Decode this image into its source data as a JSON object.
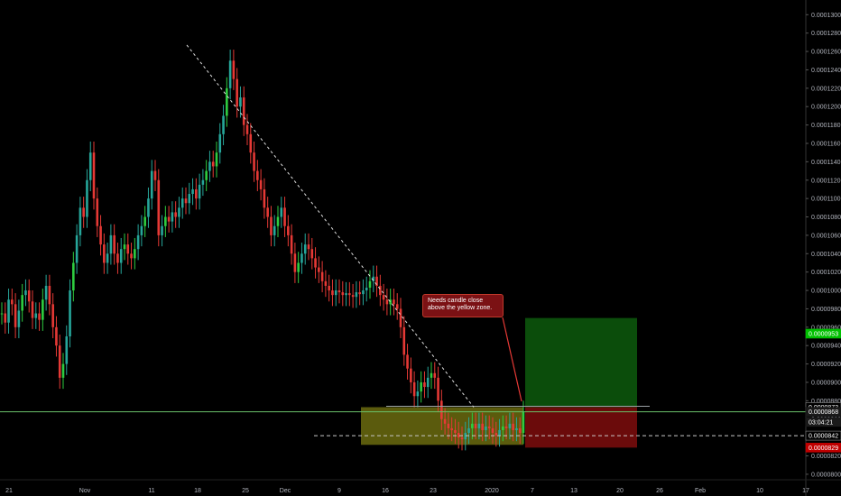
{
  "colors": {
    "background": "#000000",
    "up": "#26a69a",
    "up_bright": "#2ecc40",
    "down": "#e53935",
    "zone_yellow": "#6b6b0f",
    "target_green": "#0b4d0b",
    "stop_red": "#6b0b0b",
    "hline_green": "#6abf69"
  },
  "annotation": {
    "text": "Needs candle close above the yellow zone."
  },
  "chart_data": {
    "type": "candlestick",
    "x_ticks": [
      "21",
      "Nov",
      "11",
      "18",
      "25",
      "Dec",
      "9",
      "16",
      "23",
      "2020",
      "7",
      "13",
      "20",
      "26",
      "Feb",
      "10",
      "17"
    ],
    "y_ticks": [
      "0.0001300",
      "0.0001280",
      "0.0001260",
      "0.0001240",
      "0.0001220",
      "0.0001200",
      "0.0001180",
      "0.0001160",
      "0.0001140",
      "0.0001120",
      "0.0001100",
      "0.0001080",
      "0.0001060",
      "0.0001040",
      "0.0001020",
      "0.0001000",
      "0.0000980",
      "0.0000960",
      "0.0000940",
      "0.0000920",
      "0.0000900",
      "0.0000880",
      "0.0000860",
      "0.0000840",
      "0.0000820",
      "0.0000800"
    ],
    "ylim": [
      7.94e-05,
      0.0001316
    ],
    "price_tags": [
      {
        "label": "0.0000953",
        "value": 9.53e-05,
        "color": "#00c000"
      },
      {
        "label": "0.0000873",
        "value": 8.73e-05,
        "color": "#000000"
      },
      {
        "label": "0.0000868",
        "value": 8.68e-05,
        "color": "#1a1a1a"
      },
      {
        "label": "03:04:21",
        "value": 8.57e-05,
        "color": "#1a1a1a"
      },
      {
        "label": "0.0000842",
        "value": 8.42e-05,
        "color": "#000000"
      },
      {
        "label": "0.0000829",
        "value": 8.29e-05,
        "color": "#c00000"
      }
    ],
    "trendline": {
      "from": [
        0.0001267
      ],
      "to": [
        8.73e-05
      ]
    },
    "zones": {
      "yellow": {
        "top": 8.73e-05,
        "bottom": 8.32e-05
      },
      "target": {
        "top": 9.7e-05,
        "bottom": 8.73e-05
      },
      "stop": {
        "top": 8.73e-05,
        "bottom": 8.29e-05
      }
    },
    "hlines": {
      "green": 8.68e-05,
      "dashed": 8.42e-05,
      "gray": 8.74e-05
    },
    "closes": [
      9.75e-05,
      9.65e-05,
      9.9e-05,
      9.85e-05,
      9.6e-05,
      9.78e-05,
      9.95e-05,
      0.0001,
      9.88e-05,
      9.7e-05,
      9.75e-05,
      9.68e-05,
      9.9e-05,
      0.0001005,
      9.85e-05,
      9.6e-05,
      9.4e-05,
      9.05e-05,
      9.2e-05,
      9.5e-05,
      0.0001,
      0.000103,
      0.000106,
      0.000109,
      0.000108,
      0.000112,
      0.000115,
      0.00011,
      0.000107,
      0.000105,
      0.000103,
      0.000104,
      0.000106,
      0.000104,
      0.000103,
      0.0001045,
      0.000105,
      0.000104,
      0.0001035,
      0.0001045,
      0.000106,
      0.000107,
      0.000108,
      0.00011,
      0.000113,
      0.000112,
      0.000106,
      0.000107,
      0.000108,
      0.0001075,
      0.0001085,
      0.000108,
      0.000109,
      0.00011,
      0.0001095,
      0.0001105,
      0.000111,
      0.00011,
      0.0001115,
      0.000112,
      0.000113,
      0.000114,
      0.0001135,
      0.000115,
      0.000117,
      0.000119,
      0.000122,
      0.000125,
      0.000123,
      0.00012,
      0.000121,
      0.000118,
      0.000117,
      0.000115,
      0.000113,
      0.000112,
      0.000111,
      0.000109,
      0.000108,
      0.000106,
      0.000107,
      0.000108,
      0.000109,
      0.000107,
      0.000106,
      0.000104,
      0.000102,
      0.000103,
      0.000104,
      0.000105,
      0.0001045,
      0.0001035,
      0.0001025,
      0.000102,
      0.000101,
      0.0001005,
      0.0001,
      9.95e-05,
      0.0001,
      9.98e-05,
      9.95e-05,
      9.97e-05,
      9.95e-05,
      9.93e-05,
      9.98e-05,
      9.96e-05,
      0.0001,
      0.0001003,
      0.000101,
      0.0001015,
      0.0001005,
      9.95e-05,
      9.9e-05,
      9.85e-05,
      9.9e-05,
      9.85e-05,
      9.8e-05,
      9.6e-05,
      9.3e-05,
      9.15e-05,
      9e-05,
      8.85e-05,
      8.9e-05,
      9e-05,
      8.95e-05,
      9.05e-05,
      9.1e-05,
      9.05e-05,
      8.8e-05,
      8.6e-05,
      8.55e-05,
      8.5e-05,
      8.48e-05,
      8.45e-05,
      8.4e-05,
      8.38e-05,
      8.45e-05,
      8.5e-05,
      8.55e-05,
      8.5e-05,
      8.55e-05,
      8.48e-05,
      8.52e-05,
      8.5e-05,
      8.45e-05,
      8.42e-05,
      8.48e-05,
      8.52e-05,
      8.5e-05,
      8.55e-05,
      8.48e-05,
      8.5e-05,
      8.45e-05,
      8.68e-05
    ]
  }
}
